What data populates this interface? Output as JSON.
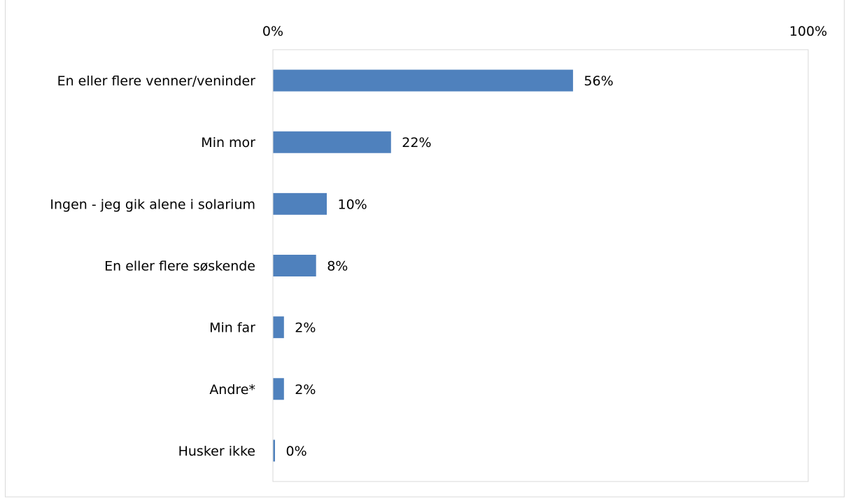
{
  "chart_data": {
    "type": "bar",
    "orientation": "horizontal",
    "title": "",
    "xlabel": "",
    "ylabel": "",
    "xlim": [
      0,
      100
    ],
    "x_ticks": [
      {
        "value": 0,
        "label": "0%"
      },
      {
        "value": 100,
        "label": "100%"
      }
    ],
    "x_axis_position": "top",
    "grid": false,
    "legend": "none",
    "bar_color": "#4F81BD",
    "categories": [
      "En eller flere venner/veninder",
      "Min mor",
      "Ingen - jeg gik alene i solarium",
      "En eller flere søskende",
      "Min far",
      "Andre*",
      "Husker ikke"
    ],
    "values": [
      56,
      22,
      10,
      8,
      2,
      2,
      0
    ],
    "data_labels": [
      "56%",
      "22%",
      "10%",
      "8%",
      "2%",
      "2%",
      "0%"
    ]
  }
}
